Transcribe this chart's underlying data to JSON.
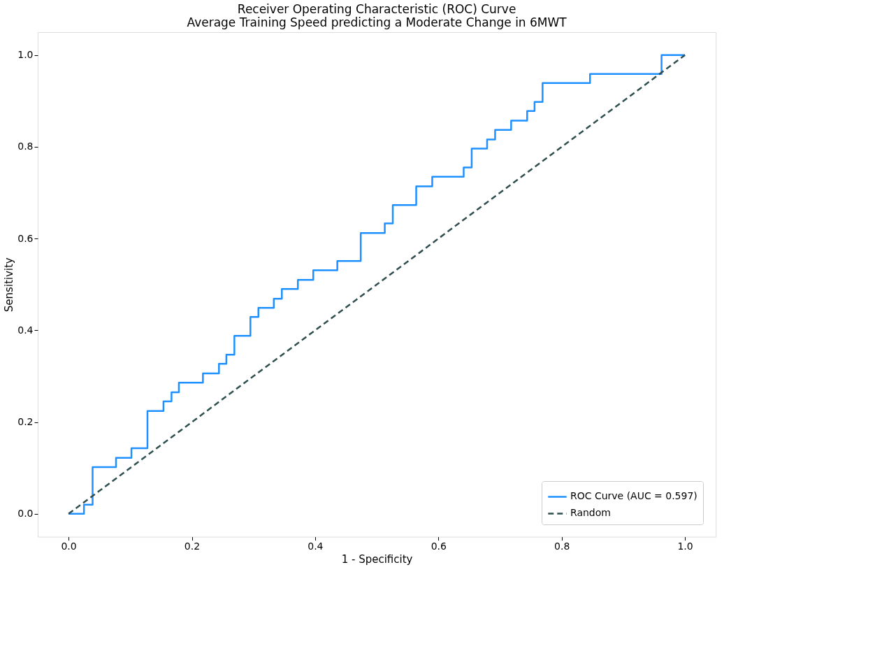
{
  "chart_data": {
    "type": "line",
    "title": "Receiver Operating Characteristic (ROC) Curve\nAverage Training Speed predicting a Moderate Change in 6MWT",
    "xlabel": "1 - Specificity",
    "ylabel": "Sensitivity",
    "xlim": [
      -0.05,
      1.05
    ],
    "ylim": [
      -0.05,
      1.05
    ],
    "xticks": [
      {
        "value": 0,
        "label": "0.0"
      },
      {
        "value": 0.2,
        "label": "0.2"
      },
      {
        "value": 0.4,
        "label": "0.4"
      },
      {
        "value": 0.6,
        "label": "0.6"
      },
      {
        "value": 0.8,
        "label": "0.8"
      },
      {
        "value": 1,
        "label": "1.0"
      }
    ],
    "yticks": [
      {
        "value": 0,
        "label": "0.0"
      },
      {
        "value": 0.2,
        "label": "0.2"
      },
      {
        "value": 0.4,
        "label": "0.4"
      },
      {
        "value": 0.6,
        "label": "0.6"
      },
      {
        "value": 0.8,
        "label": "0.8"
      },
      {
        "value": 1,
        "label": "1.0"
      }
    ],
    "grid": false,
    "legend": "bottom right",
    "marker": "none",
    "series": [
      {
        "name": "ROC Curve (AUC = 0.597)",
        "color": "#1e90ff",
        "line_style": "solid",
        "x": [
          0,
          0.025,
          0.025,
          0.039,
          0.039,
          0.077,
          0.077,
          0.102,
          0.102,
          0.128,
          0.128,
          0.154,
          0.154,
          0.167,
          0.167,
          0.179,
          0.179,
          0.218,
          0.218,
          0.244,
          0.244,
          0.256,
          0.256,
          0.269,
          0.269,
          0.295,
          0.295,
          0.308,
          0.308,
          0.333,
          0.333,
          0.346,
          0.346,
          0.372,
          0.372,
          0.397,
          0.397,
          0.436,
          0.436,
          0.474,
          0.474,
          0.513,
          0.513,
          0.526,
          0.526,
          0.564,
          0.564,
          0.59,
          0.59,
          0.641,
          0.641,
          0.654,
          0.654,
          0.679,
          0.679,
          0.692,
          0.692,
          0.718,
          0.718,
          0.744,
          0.744,
          0.756,
          0.756,
          0.769,
          0.769,
          0.846,
          0.846,
          0.962,
          0.962,
          1
        ],
        "values": [
          0,
          0,
          0.02,
          0.02,
          0.102,
          0.102,
          0.122,
          0.122,
          0.143,
          0.143,
          0.224,
          0.224,
          0.245,
          0.245,
          0.265,
          0.265,
          0.286,
          0.286,
          0.306,
          0.306,
          0.327,
          0.327,
          0.347,
          0.347,
          0.388,
          0.388,
          0.429,
          0.429,
          0.449,
          0.449,
          0.469,
          0.469,
          0.49,
          0.49,
          0.51,
          0.51,
          0.531,
          0.531,
          0.551,
          0.551,
          0.612,
          0.612,
          0.633,
          0.633,
          0.673,
          0.673,
          0.714,
          0.714,
          0.735,
          0.735,
          0.755,
          0.755,
          0.796,
          0.796,
          0.816,
          0.816,
          0.837,
          0.837,
          0.857,
          0.857,
          0.878,
          0.878,
          0.898,
          0.898,
          0.939,
          0.939,
          0.959,
          0.959,
          1,
          1
        ]
      },
      {
        "name": "Random",
        "color": "#2f4f4f",
        "line_style": "dashed",
        "x": [
          0,
          1
        ],
        "values": [
          0,
          1
        ]
      }
    ]
  }
}
